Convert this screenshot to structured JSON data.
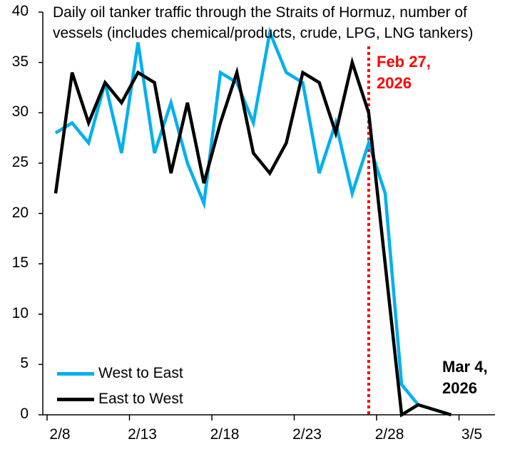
{
  "chart_data": {
    "type": "line",
    "title": "Daily oil tanker traffic through the Straits of Hormuz, number of vessels (includes chemical/products, crude, LPG, LNG tankers)",
    "x": [
      "2/8",
      "2/9",
      "2/10",
      "2/11",
      "2/12",
      "2/13",
      "2/14",
      "2/15",
      "2/16",
      "2/17",
      "2/18",
      "2/19",
      "2/20",
      "2/21",
      "2/22",
      "2/23",
      "2/24",
      "2/25",
      "2/26",
      "2/27",
      "2/28",
      "3/1",
      "3/2",
      "3/3",
      "3/4"
    ],
    "series": [
      {
        "name": "West to East",
        "color": "#00b0f0",
        "values": [
          28,
          29,
          27,
          33,
          26,
          37,
          26,
          31,
          25,
          21,
          34,
          33,
          29,
          38,
          34,
          33,
          24,
          29,
          22,
          27,
          22,
          3,
          1,
          null,
          0
        ]
      },
      {
        "name": "East to West",
        "color": "#000000",
        "values": [
          22,
          34,
          29,
          33,
          31,
          34,
          33,
          24,
          31,
          23,
          29,
          34,
          26,
          24,
          27,
          34,
          33,
          28,
          35,
          30,
          null,
          0,
          1,
          null,
          0
        ]
      }
    ],
    "xticks": [
      "2/8",
      "2/13",
      "2/18",
      "2/23",
      "2/28",
      "3/5"
    ],
    "yticks": [
      0,
      5,
      10,
      15,
      20,
      25,
      30,
      35,
      40
    ],
    "ylim": [
      0,
      40
    ],
    "xlabel": "",
    "ylabel": "",
    "grid": false,
    "legend": "bottom-left",
    "annotations": [
      {
        "text_line1": "Feb 27,",
        "text_line2": "2026",
        "x": "2/27",
        "color": "#ff0000",
        "marker": "dotted-vertical-line"
      },
      {
        "text_line1": "Mar 4,",
        "text_line2": "2026",
        "x": "3/4",
        "color": "#000000"
      }
    ]
  }
}
